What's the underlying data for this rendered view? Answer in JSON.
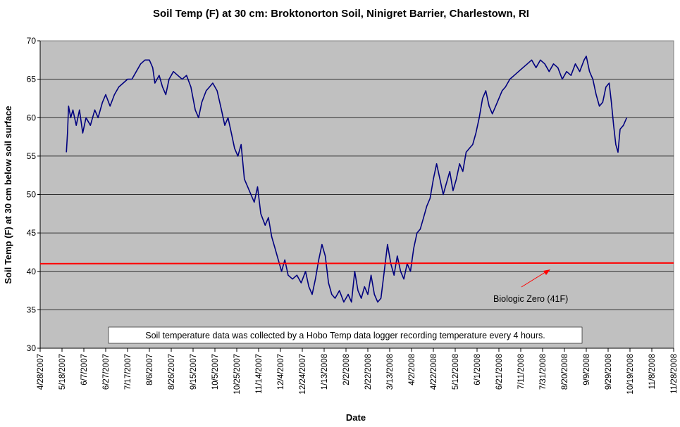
{
  "chart_data": {
    "type": "line",
    "title": "Soil Temp (F) at 30 cm: Broktonorton Soil, Ninigret Barrier, Charlestown, RI",
    "xlabel": "Date",
    "ylabel": "Soil Temp (F) at 30 cm below soil surface",
    "ylim": [
      30,
      70
    ],
    "y_ticks": [
      "30",
      "35",
      "40",
      "45",
      "50",
      "55",
      "60",
      "65",
      "70"
    ],
    "x_ticks": [
      "4/28/2007",
      "5/18/2007",
      "6/7/2007",
      "6/27/2007",
      "7/17/2007",
      "8/6/2007",
      "8/26/2007",
      "9/15/2007",
      "10/5/2007",
      "10/25/2007",
      "11/14/2007",
      "12/4/2007",
      "12/24/2007",
      "1/13/2008",
      "2/2/2008",
      "2/22/2008",
      "3/13/2008",
      "4/2/2008",
      "4/22/2008",
      "5/12/2008",
      "6/1/2008",
      "6/21/2008",
      "7/11/2008",
      "7/31/2008",
      "8/20/2008",
      "9/9/2008",
      "9/29/2008",
      "10/19/2008",
      "11/8/2008",
      "11/28/2008"
    ],
    "grid": "horizontal",
    "plot_background": "#c0c0c0",
    "series": [
      {
        "color": "#00007f",
        "points": [
          [
            "5/22/2007",
            55.5
          ],
          [
            "5/23/2007",
            58.0
          ],
          [
            "5/24/2007",
            61.5
          ],
          [
            "5/26/2007",
            60.0
          ],
          [
            "5/28/2007",
            61.0
          ],
          [
            "5/31/2007",
            59.0
          ],
          [
            "6/3/2007",
            61.0
          ],
          [
            "6/6/2007",
            58.0
          ],
          [
            "6/9/2007",
            60.0
          ],
          [
            "6/13/2007",
            59.0
          ],
          [
            "6/17/2007",
            61.0
          ],
          [
            "6/20/2007",
            60.0
          ],
          [
            "6/24/2007",
            62.0
          ],
          [
            "6/27/2007",
            63.0
          ],
          [
            "7/1/2007",
            61.5
          ],
          [
            "7/5/2007",
            63.0
          ],
          [
            "7/9/2007",
            64.0
          ],
          [
            "7/13/2007",
            64.5
          ],
          [
            "7/17/2007",
            65.0
          ],
          [
            "7/21/2007",
            65.0
          ],
          [
            "7/25/2007",
            66.0
          ],
          [
            "7/29/2007",
            67.0
          ],
          [
            "8/2/2007",
            67.5
          ],
          [
            "8/6/2007",
            67.5
          ],
          [
            "8/9/2007",
            66.5
          ],
          [
            "8/11/2007",
            64.5
          ],
          [
            "8/15/2007",
            65.5
          ],
          [
            "8/18/2007",
            64.0
          ],
          [
            "8/21/2007",
            63.0
          ],
          [
            "8/24/2007",
            65.0
          ],
          [
            "8/28/2007",
            66.0
          ],
          [
            "9/1/2007",
            65.5
          ],
          [
            "9/5/2007",
            65.0
          ],
          [
            "9/9/2007",
            65.5
          ],
          [
            "9/13/2007",
            64.0
          ],
          [
            "9/17/2007",
            61.0
          ],
          [
            "9/20/2007",
            60.0
          ],
          [
            "9/23/2007",
            62.0
          ],
          [
            "9/27/2007",
            63.5
          ],
          [
            "9/30/2007",
            64.0
          ],
          [
            "10/3/2007",
            64.5
          ],
          [
            "10/7/2007",
            63.5
          ],
          [
            "10/11/2007",
            61.0
          ],
          [
            "10/14/2007",
            59.0
          ],
          [
            "10/17/2007",
            60.0
          ],
          [
            "10/20/2007",
            58.0
          ],
          [
            "10/23/2007",
            56.0
          ],
          [
            "10/26/2007",
            55.0
          ],
          [
            "10/29/2007",
            56.5
          ],
          [
            "11/1/2007",
            52.0
          ],
          [
            "11/4/2007",
            51.0
          ],
          [
            "11/7/2007",
            50.0
          ],
          [
            "11/10/2007",
            49.0
          ],
          [
            "11/13/2007",
            51.0
          ],
          [
            "11/16/2007",
            47.5
          ],
          [
            "11/20/2007",
            46.0
          ],
          [
            "11/23/2007",
            47.0
          ],
          [
            "11/26/2007",
            44.5
          ],
          [
            "11/29/2007",
            43.0
          ],
          [
            "12/2/2007",
            41.5
          ],
          [
            "12/5/2007",
            40.0
          ],
          [
            "12/8/2007",
            41.5
          ],
          [
            "12/11/2007",
            39.5
          ],
          [
            "12/15/2007",
            39.0
          ],
          [
            "12/19/2007",
            39.5
          ],
          [
            "12/23/2007",
            38.5
          ],
          [
            "12/27/2007",
            40.0
          ],
          [
            "12/30/2007",
            38.0
          ],
          [
            "1/2/2008",
            37.0
          ],
          [
            "1/5/2008",
            39.0
          ],
          [
            "1/8/2008",
            41.5
          ],
          [
            "1/11/2008",
            43.5
          ],
          [
            "1/14/2008",
            42.0
          ],
          [
            "1/17/2008",
            38.5
          ],
          [
            "1/20/2008",
            37.0
          ],
          [
            "1/23/2008",
            36.5
          ],
          [
            "1/27/2008",
            37.5
          ],
          [
            "1/31/2008",
            36.0
          ],
          [
            "2/4/2008",
            37.0
          ],
          [
            "2/7/2008",
            36.0
          ],
          [
            "2/10/2008",
            40.0
          ],
          [
            "2/13/2008",
            37.5
          ],
          [
            "2/16/2008",
            36.5
          ],
          [
            "2/19/2008",
            38.0
          ],
          [
            "2/22/2008",
            37.0
          ],
          [
            "2/25/2008",
            39.5
          ],
          [
            "2/28/2008",
            37.0
          ],
          [
            "3/2/2008",
            36.0
          ],
          [
            "3/5/2008",
            36.5
          ],
          [
            "3/8/2008",
            40.0
          ],
          [
            "3/11/2008",
            43.5
          ],
          [
            "3/14/2008",
            41.0
          ],
          [
            "3/17/2008",
            39.5
          ],
          [
            "3/20/2008",
            42.0
          ],
          [
            "3/23/2008",
            40.0
          ],
          [
            "3/26/2008",
            39.0
          ],
          [
            "3/29/2008",
            41.0
          ],
          [
            "4/1/2008",
            40.0
          ],
          [
            "4/4/2008",
            43.0
          ],
          [
            "4/7/2008",
            45.0
          ],
          [
            "4/10/2008",
            45.5
          ],
          [
            "4/13/2008",
            47.0
          ],
          [
            "4/16/2008",
            48.5
          ],
          [
            "4/19/2008",
            49.5
          ],
          [
            "4/22/2008",
            52.0
          ],
          [
            "4/25/2008",
            54.0
          ],
          [
            "4/28/2008",
            52.0
          ],
          [
            "5/1/2008",
            50.0
          ],
          [
            "5/4/2008",
            51.5
          ],
          [
            "5/7/2008",
            53.0
          ],
          [
            "5/10/2008",
            50.5
          ],
          [
            "5/13/2008",
            52.0
          ],
          [
            "5/16/2008",
            54.0
          ],
          [
            "5/19/2008",
            53.0
          ],
          [
            "5/22/2008",
            55.5
          ],
          [
            "5/25/2008",
            56.0
          ],
          [
            "5/28/2008",
            56.5
          ],
          [
            "5/31/2008",
            58.0
          ],
          [
            "6/3/2008",
            60.0
          ],
          [
            "6/6/2008",
            62.5
          ],
          [
            "6/9/2008",
            63.5
          ],
          [
            "6/12/2008",
            61.5
          ],
          [
            "6/15/2008",
            60.5
          ],
          [
            "6/18/2008",
            61.5
          ],
          [
            "6/21/2008",
            62.5
          ],
          [
            "6/24/2008",
            63.5
          ],
          [
            "6/27/2008",
            64.0
          ],
          [
            "7/1/2008",
            65.0
          ],
          [
            "7/5/2008",
            65.5
          ],
          [
            "7/9/2008",
            66.0
          ],
          [
            "7/13/2008",
            66.5
          ],
          [
            "7/17/2008",
            67.0
          ],
          [
            "7/21/2008",
            67.5
          ],
          [
            "7/25/2008",
            66.5
          ],
          [
            "7/29/2008",
            67.5
          ],
          [
            "8/2/2008",
            67.0
          ],
          [
            "8/6/2008",
            66.0
          ],
          [
            "8/10/2008",
            67.0
          ],
          [
            "8/14/2008",
            66.5
          ],
          [
            "8/18/2008",
            65.0
          ],
          [
            "8/22/2008",
            66.0
          ],
          [
            "8/26/2008",
            65.5
          ],
          [
            "8/30/2008",
            67.0
          ],
          [
            "9/3/2008",
            66.0
          ],
          [
            "9/7/2008",
            67.5
          ],
          [
            "9/9/2008",
            68.0
          ],
          [
            "9/12/2008",
            66.0
          ],
          [
            "9/15/2008",
            65.0
          ],
          [
            "9/18/2008",
            63.0
          ],
          [
            "9/21/2008",
            61.5
          ],
          [
            "9/24/2008",
            62.0
          ],
          [
            "9/27/2008",
            64.0
          ],
          [
            "9/30/2008",
            64.5
          ],
          [
            "10/2/2008",
            62.0
          ],
          [
            "10/4/2008",
            59.0
          ],
          [
            "10/6/2008",
            56.5
          ],
          [
            "10/8/2008",
            55.5
          ],
          [
            "10/10/2008",
            58.5
          ],
          [
            "10/13/2008",
            59.0
          ],
          [
            "10/16/2008",
            60.0
          ]
        ]
      }
    ],
    "reference_line": {
      "y": 41,
      "color": "#ff0000",
      "label": "Biologic Zero (41F)"
    },
    "annotation": "Soil temperature data was collected by a Hobo Temp data logger recording temperature every 4 hours."
  }
}
